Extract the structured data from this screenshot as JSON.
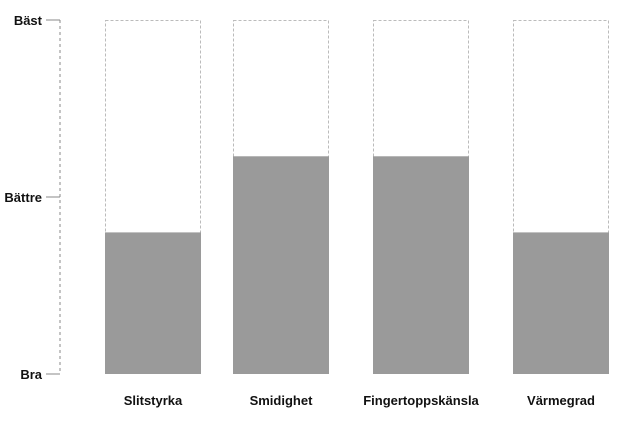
{
  "chart_data": {
    "type": "bar",
    "title": "",
    "xlabel": "",
    "ylabel": "",
    "y_ticks": [
      "Bra",
      "Bättre",
      "Bäst"
    ],
    "ylim": [
      0,
      2
    ],
    "categories": [
      "Slitstyrka",
      "Smidighet",
      "Fingertoppskänsla",
      "Värmegrad"
    ],
    "values": [
      0.8,
      1.23,
      1.23,
      0.8
    ],
    "max_outline": 2,
    "colors": {
      "bar": "#9a9a9a",
      "outline": "#bbbbbb",
      "axis": "#888888"
    },
    "grid": false,
    "legend": "none"
  }
}
